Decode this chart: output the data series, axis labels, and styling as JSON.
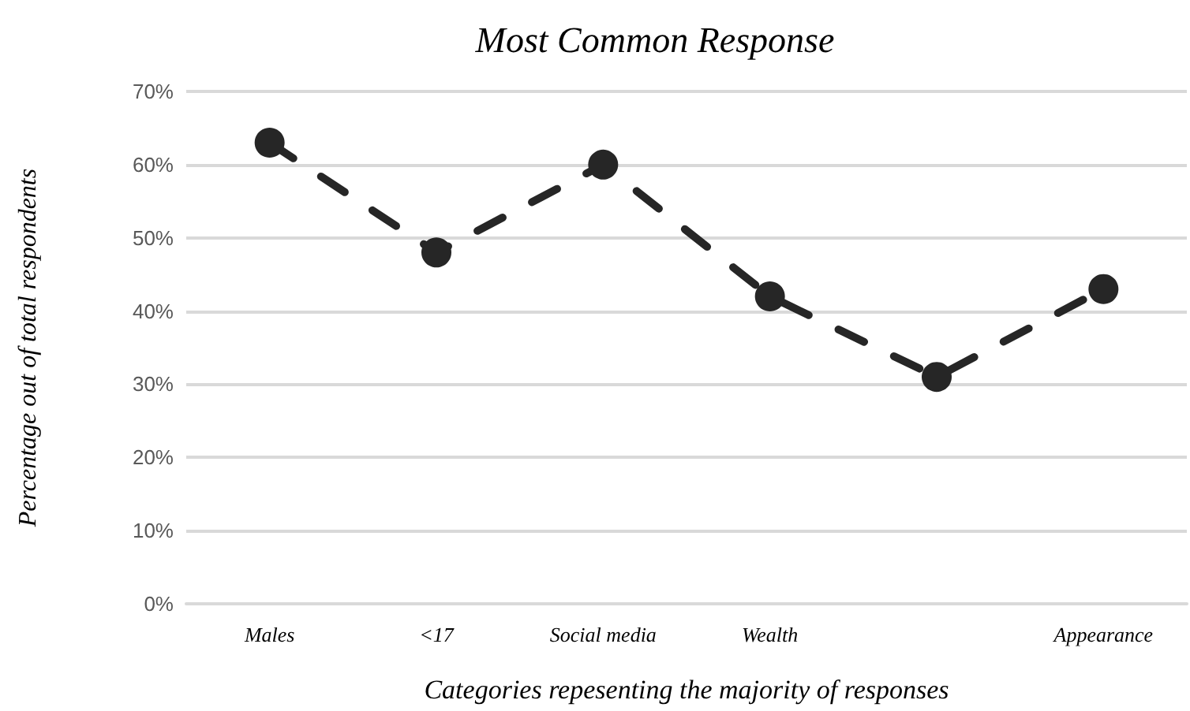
{
  "chart_data": {
    "type": "line",
    "title": "Most Common Response",
    "xlabel": "Categories repesenting the majority of responses",
    "ylabel": "Percentage out of total respondents",
    "categories": [
      "Males",
      "<17",
      "Social media",
      "Wealth",
      null,
      "Appearance"
    ],
    "series": [
      {
        "color": "#262626",
        "values": [
          63,
          48,
          60,
          42,
          31,
          43
        ]
      }
    ],
    "ylim": [
      0,
      70
    ],
    "yticks": [
      {
        "value": 0,
        "label": "0%"
      },
      {
        "value": 10,
        "label": "10%"
      },
      {
        "value": 20,
        "label": "20%"
      },
      {
        "value": 30,
        "label": "30%"
      },
      {
        "value": 40,
        "label": "40%"
      },
      {
        "value": 50,
        "label": "50%"
      },
      {
        "value": 60,
        "label": "60%"
      },
      {
        "value": 70,
        "label": "70%"
      }
    ],
    "grid": "y",
    "marker": "circle",
    "line_style": "dashed"
  }
}
